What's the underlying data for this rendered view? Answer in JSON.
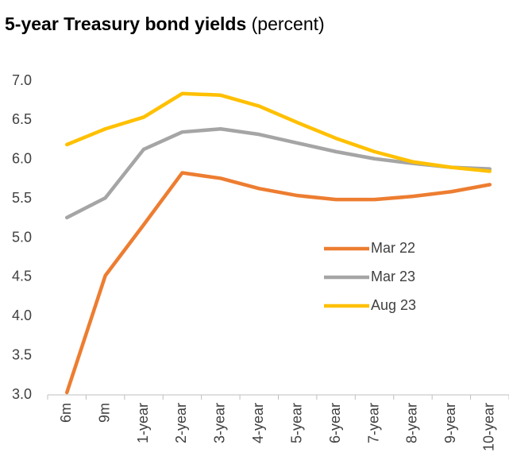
{
  "chart_data": {
    "type": "line",
    "title": "5-year Treasury bond yields",
    "title_unit": "(percent)",
    "categories": [
      "6m",
      "9m",
      "1-year",
      "2-year",
      "3-year",
      "4-year",
      "5-year",
      "6-year",
      "7-year",
      "8-year",
      "9-year",
      "10-year"
    ],
    "series": [
      {
        "name": "Mar 22",
        "color": "#ED7D31",
        "values": [
          3.03,
          4.52,
          5.17,
          5.83,
          5.76,
          5.63,
          5.54,
          5.49,
          5.49,
          5.53,
          5.59,
          5.68
        ]
      },
      {
        "name": "Mar 23",
        "color": "#A5A5A5",
        "values": [
          5.26,
          5.51,
          6.13,
          6.35,
          6.39,
          6.32,
          6.21,
          6.1,
          6.01,
          5.95,
          5.9,
          5.88
        ]
      },
      {
        "name": "Aug 23",
        "color": "#FFC000",
        "values": [
          6.19,
          6.39,
          6.54,
          6.84,
          6.82,
          6.68,
          6.47,
          6.27,
          6.1,
          5.97,
          5.9,
          5.85
        ]
      }
    ],
    "ylim": [
      3,
      7
    ],
    "yticks": [
      {
        "value": 3,
        "label": "3.0"
      },
      {
        "value": 3.5,
        "label": "3.5"
      },
      {
        "value": 4,
        "label": "4.0"
      },
      {
        "value": 4.5,
        "label": "4.5"
      },
      {
        "value": 5,
        "label": "5.0"
      },
      {
        "value": 5.5,
        "label": "5.5"
      },
      {
        "value": 6,
        "label": "6.0"
      },
      {
        "value": 6.5,
        "label": "6.5"
      },
      {
        "value": 7,
        "label": "7.0"
      }
    ],
    "grid": false,
    "legend": "right"
  }
}
